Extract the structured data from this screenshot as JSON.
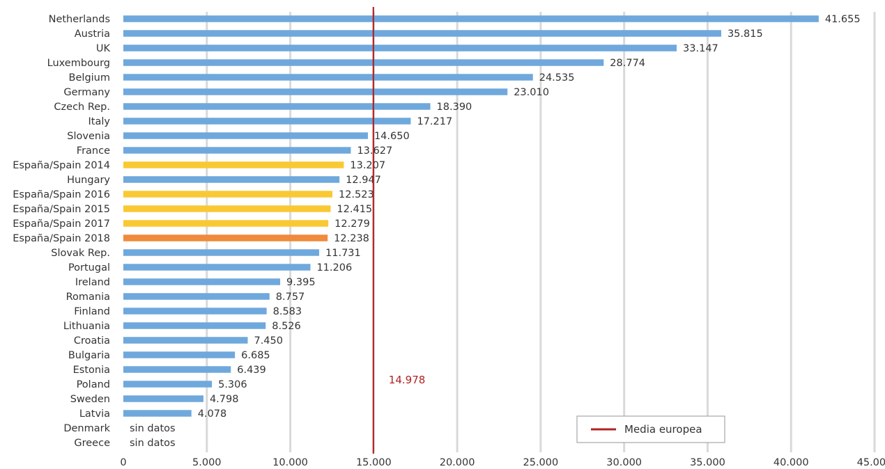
{
  "chart_data": {
    "type": "bar",
    "orientation": "horizontal",
    "categories": [
      "Netherlands",
      "Austria",
      "UK",
      "Luxembourg",
      "Belgium",
      "Germany",
      "Czech Rep.",
      "Italy",
      "Slovenia",
      "France",
      "España/Spain 2014",
      "Hungary",
      "España/Spain 2016",
      "España/Spain 2015",
      "España/Spain 2017",
      "España/Spain 2018",
      "Slovak Rep.",
      "Portugal",
      "Ireland",
      "Romania",
      "Finland",
      "Lithuania",
      "Croatia",
      "Bulgaria",
      "Estonia",
      "Poland",
      "Sweden",
      "Latvia",
      "Denmark",
      "Greece"
    ],
    "values": [
      41655,
      35815,
      33147,
      28774,
      24535,
      23010,
      18390,
      17217,
      14650,
      13627,
      13207,
      12947,
      12523,
      12415,
      12279,
      12238,
      11731,
      11206,
      9395,
      8757,
      8583,
      8526,
      7450,
      6685,
      6439,
      5306,
      4798,
      4078,
      null,
      null
    ],
    "value_labels": [
      "41.655",
      "35.815",
      "33.147",
      "28.774",
      "24.535",
      "23.010",
      "18.390",
      "17.217",
      "14.650",
      "13.627",
      "13.207",
      "12.947",
      "12.523",
      "12.415",
      "12.279",
      "12.238",
      "11.731",
      "11.206",
      "9.395",
      "8.757",
      "8.583",
      "8.526",
      "7.450",
      "6.685",
      "6.439",
      "5.306",
      "4.798",
      "4.078",
      "sin datos",
      "sin datos"
    ],
    "bar_colors": [
      "#6fa8dc",
      "#6fa8dc",
      "#6fa8dc",
      "#6fa8dc",
      "#6fa8dc",
      "#6fa8dc",
      "#6fa8dc",
      "#6fa8dc",
      "#6fa8dc",
      "#6fa8dc",
      "#f9c934",
      "#6fa8dc",
      "#f9c934",
      "#f9c934",
      "#f9c934",
      "#f08a3c",
      "#6fa8dc",
      "#6fa8dc",
      "#6fa8dc",
      "#6fa8dc",
      "#6fa8dc",
      "#6fa8dc",
      "#6fa8dc",
      "#6fa8dc",
      "#6fa8dc",
      "#6fa8dc",
      "#6fa8dc",
      "#6fa8dc",
      "#6fa8dc",
      "#6fa8dc"
    ],
    "xlim": [
      0,
      45000
    ],
    "x_ticks": [
      0,
      5000,
      10000,
      15000,
      20000,
      25000,
      30000,
      35000,
      40000,
      45000
    ],
    "x_tick_labels": [
      "0",
      "5.000",
      "10.000",
      "15.000",
      "20.000",
      "25.000",
      "30.000",
      "35.000",
      "40.000",
      "45.000"
    ],
    "grid": "vertical",
    "reference_line": {
      "value": 14978,
      "label": "14.978",
      "color": "#b22222"
    },
    "legend": {
      "position": "bottom-right",
      "entries": [
        {
          "label": "Media europea",
          "color": "#b22222"
        }
      ]
    },
    "title": "",
    "xlabel": "",
    "ylabel": ""
  }
}
